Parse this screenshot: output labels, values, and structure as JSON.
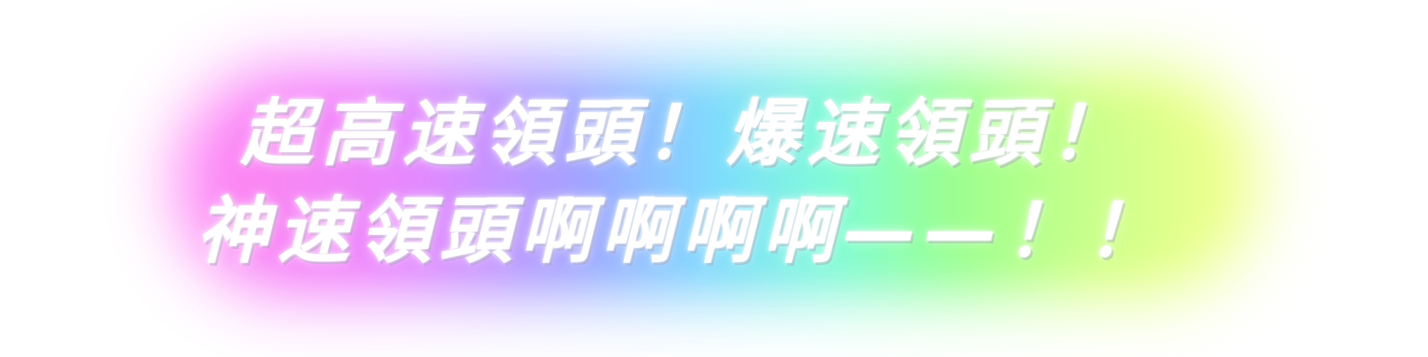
{
  "headline": {
    "line1": "超高速領頭！爆速領頭！",
    "line2": "神速領頭啊啊啊啊——！！"
  },
  "colors": {
    "text": "#ffffff",
    "glow_start": "#ff7ff2",
    "glow_mid_violet": "#9f96ff",
    "glow_mid_cyan": "#6fd0ff",
    "glow_mid_green": "#8cff8a",
    "glow_end": "#f3ff8a",
    "background": "#ffffff"
  }
}
